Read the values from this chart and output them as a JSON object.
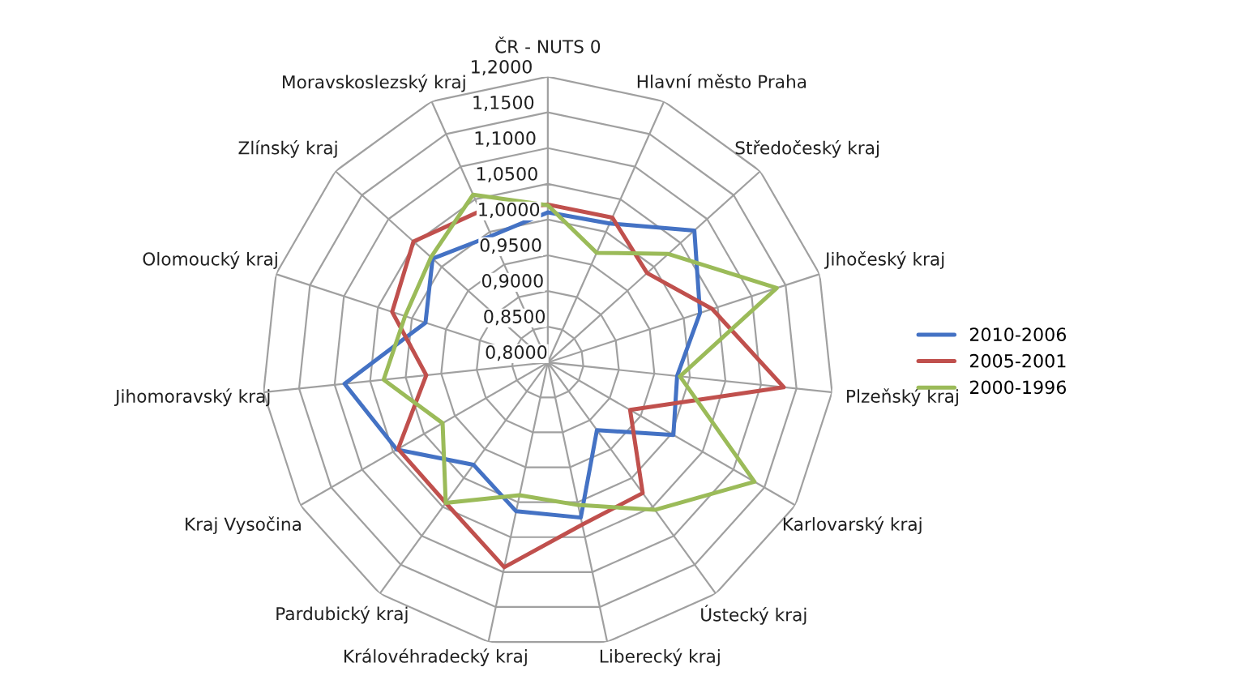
{
  "chart_data": {
    "type": "radar",
    "categories": [
      "ČR - NUTS 0",
      "Hlavní město Praha",
      "Středočeský kraj",
      "Jihočeský kraj",
      "Plzeňský kraj",
      "Karlovarský kraj",
      "Ústecký kraj",
      "Liberecký kraj",
      "Královéhradecký kraj",
      "Pardubický kraj",
      "Kraj Vysočina",
      "Jihomoravský kraj",
      "Olomoucký kraj",
      "Zlínský kraj",
      "Moravskoslezský kraj"
    ],
    "series": [
      {
        "name": "2010-2006",
        "color": "#4472c4",
        "values": [
          1.01,
          1.013,
          1.076,
          1.024,
          0.982,
          1.003,
          0.917,
          1.022,
          1.013,
          0.977,
          1.044,
          1.086,
          0.98,
          1.017,
          0.994
        ]
      },
      {
        "name": "2005-2001",
        "color": "#c0504d",
        "values": [
          1.021,
          1.022,
          0.987,
          1.042,
          1.132,
          0.933,
          1.026,
          1.032,
          1.093,
          1.043,
          1.042,
          0.971,
          1.029,
          1.053,
          1.032
        ]
      },
      {
        "name": "2000-1996",
        "color": "#9bbb59",
        "values": [
          1.02,
          0.968,
          1.027,
          1.137,
          0.986,
          1.134,
          1.055,
          1.004,
          0.99,
          1.043,
          0.97,
          1.031,
          1.01,
          1.02,
          1.057
        ]
      }
    ],
    "ylim": [
      0.8,
      1.2
    ],
    "yticks": [
      {
        "value": 0.8,
        "label": "0,8000"
      },
      {
        "value": 0.85,
        "label": "0,8500"
      },
      {
        "value": 0.9,
        "label": "0,9000"
      },
      {
        "value": 0.95,
        "label": "0,9500"
      },
      {
        "value": 1.0,
        "label": "1,0000"
      },
      {
        "value": 1.05,
        "label": "1,0500"
      },
      {
        "value": 1.1,
        "label": "1,1000"
      },
      {
        "value": 1.15,
        "label": "1,1500"
      },
      {
        "value": 1.2,
        "label": "1,2000"
      }
    ],
    "grid": true,
    "legend": "right"
  }
}
